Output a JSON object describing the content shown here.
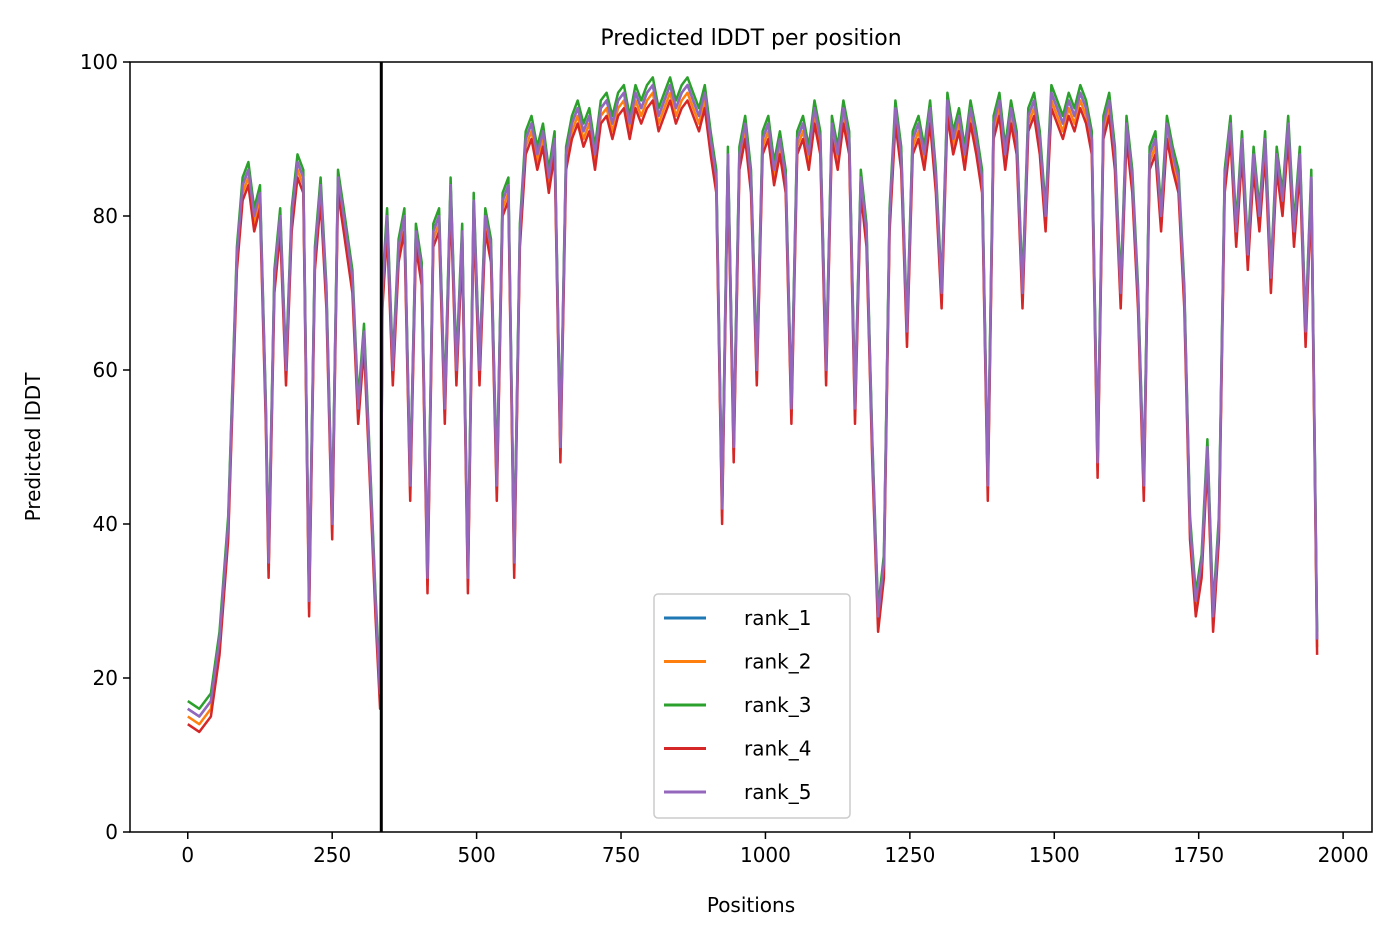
{
  "chart_data": {
    "type": "line",
    "title": "Predicted lDDT per position",
    "xlabel": "Positions",
    "ylabel": "Predicted lDDT",
    "xlim": [
      -100,
      2050
    ],
    "ylim": [
      0,
      100
    ],
    "xticks": [
      0,
      250,
      500,
      750,
      1000,
      1250,
      1500,
      1750,
      2000
    ],
    "yticks": [
      0,
      20,
      40,
      60,
      80,
      100
    ],
    "grid": false,
    "legend_position": "bottom-center",
    "vline": {
      "x": 335,
      "color": "#000000"
    },
    "series": [
      {
        "name": "rank_1",
        "color": "#1f77b4",
        "offset": 0
      },
      {
        "name": "rank_2",
        "color": "#ff7f0e",
        "offset": -1
      },
      {
        "name": "rank_3",
        "color": "#2ca02c",
        "offset": 1
      },
      {
        "name": "rank_4",
        "color": "#d62728",
        "offset": -2
      },
      {
        "name": "rank_5",
        "color": "#9467bd",
        "offset": 0
      }
    ],
    "profile": [
      [
        0,
        16
      ],
      [
        20,
        15
      ],
      [
        40,
        17
      ],
      [
        55,
        25
      ],
      [
        70,
        40
      ],
      [
        85,
        75
      ],
      [
        95,
        84
      ],
      [
        105,
        86
      ],
      [
        115,
        80
      ],
      [
        125,
        83
      ],
      [
        135,
        55
      ],
      [
        140,
        35
      ],
      [
        150,
        72
      ],
      [
        160,
        80
      ],
      [
        170,
        60
      ],
      [
        180,
        80
      ],
      [
        190,
        87
      ],
      [
        200,
        85
      ],
      [
        210,
        30
      ],
      [
        220,
        75
      ],
      [
        230,
        84
      ],
      [
        240,
        70
      ],
      [
        250,
        40
      ],
      [
        260,
        85
      ],
      [
        270,
        80
      ],
      [
        285,
        72
      ],
      [
        295,
        55
      ],
      [
        305,
        65
      ],
      [
        315,
        48
      ],
      [
        325,
        30
      ],
      [
        333,
        18
      ],
      [
        337,
        70
      ],
      [
        345,
        80
      ],
      [
        355,
        60
      ],
      [
        365,
        76
      ],
      [
        375,
        80
      ],
      [
        385,
        45
      ],
      [
        395,
        78
      ],
      [
        405,
        73
      ],
      [
        415,
        33
      ],
      [
        425,
        78
      ],
      [
        435,
        80
      ],
      [
        445,
        55
      ],
      [
        455,
        84
      ],
      [
        465,
        60
      ],
      [
        475,
        78
      ],
      [
        485,
        33
      ],
      [
        495,
        82
      ],
      [
        505,
        60
      ],
      [
        515,
        80
      ],
      [
        525,
        76
      ],
      [
        535,
        45
      ],
      [
        545,
        82
      ],
      [
        555,
        84
      ],
      [
        565,
        35
      ],
      [
        575,
        78
      ],
      [
        585,
        90
      ],
      [
        595,
        92
      ],
      [
        605,
        88
      ],
      [
        615,
        91
      ],
      [
        625,
        85
      ],
      [
        635,
        90
      ],
      [
        645,
        50
      ],
      [
        655,
        88
      ],
      [
        665,
        92
      ],
      [
        675,
        94
      ],
      [
        685,
        91
      ],
      [
        695,
        93
      ],
      [
        705,
        88
      ],
      [
        715,
        94
      ],
      [
        725,
        95
      ],
      [
        735,
        92
      ],
      [
        745,
        95
      ],
      [
        755,
        96
      ],
      [
        765,
        92
      ],
      [
        775,
        96
      ],
      [
        785,
        94
      ],
      [
        795,
        96
      ],
      [
        805,
        97
      ],
      [
        815,
        93
      ],
      [
        825,
        95
      ],
      [
        835,
        97
      ],
      [
        845,
        94
      ],
      [
        855,
        96
      ],
      [
        865,
        97
      ],
      [
        875,
        95
      ],
      [
        885,
        93
      ],
      [
        895,
        96
      ],
      [
        905,
        90
      ],
      [
        915,
        85
      ],
      [
        925,
        42
      ],
      [
        935,
        88
      ],
      [
        945,
        50
      ],
      [
        955,
        88
      ],
      [
        965,
        92
      ],
      [
        975,
        85
      ],
      [
        985,
        60
      ],
      [
        995,
        90
      ],
      [
        1005,
        92
      ],
      [
        1015,
        86
      ],
      [
        1025,
        90
      ],
      [
        1035,
        85
      ],
      [
        1045,
        55
      ],
      [
        1055,
        90
      ],
      [
        1065,
        92
      ],
      [
        1075,
        88
      ],
      [
        1085,
        94
      ],
      [
        1095,
        90
      ],
      [
        1105,
        60
      ],
      [
        1115,
        92
      ],
      [
        1125,
        88
      ],
      [
        1135,
        94
      ],
      [
        1145,
        90
      ],
      [
        1155,
        55
      ],
      [
        1165,
        85
      ],
      [
        1175,
        78
      ],
      [
        1185,
        50
      ],
      [
        1195,
        28
      ],
      [
        1205,
        35
      ],
      [
        1215,
        80
      ],
      [
        1225,
        94
      ],
      [
        1235,
        88
      ],
      [
        1245,
        65
      ],
      [
        1255,
        90
      ],
      [
        1265,
        92
      ],
      [
        1275,
        88
      ],
      [
        1285,
        94
      ],
      [
        1295,
        85
      ],
      [
        1305,
        70
      ],
      [
        1315,
        95
      ],
      [
        1325,
        90
      ],
      [
        1335,
        93
      ],
      [
        1345,
        88
      ],
      [
        1355,
        94
      ],
      [
        1365,
        90
      ],
      [
        1375,
        85
      ],
      [
        1385,
        45
      ],
      [
        1395,
        92
      ],
      [
        1405,
        95
      ],
      [
        1415,
        88
      ],
      [
        1425,
        94
      ],
      [
        1435,
        90
      ],
      [
        1445,
        70
      ],
      [
        1455,
        93
      ],
      [
        1465,
        95
      ],
      [
        1475,
        90
      ],
      [
        1485,
        80
      ],
      [
        1495,
        96
      ],
      [
        1505,
        94
      ],
      [
        1515,
        92
      ],
      [
        1525,
        95
      ],
      [
        1535,
        93
      ],
      [
        1545,
        96
      ],
      [
        1555,
        94
      ],
      [
        1565,
        90
      ],
      [
        1575,
        48
      ],
      [
        1585,
        92
      ],
      [
        1595,
        95
      ],
      [
        1605,
        88
      ],
      [
        1615,
        70
      ],
      [
        1625,
        92
      ],
      [
        1635,
        85
      ],
      [
        1645,
        70
      ],
      [
        1655,
        45
      ],
      [
        1665,
        88
      ],
      [
        1675,
        90
      ],
      [
        1685,
        80
      ],
      [
        1695,
        92
      ],
      [
        1705,
        88
      ],
      [
        1715,
        85
      ],
      [
        1725,
        70
      ],
      [
        1735,
        40
      ],
      [
        1745,
        30
      ],
      [
        1755,
        35
      ],
      [
        1765,
        50
      ],
      [
        1775,
        28
      ],
      [
        1785,
        40
      ],
      [
        1795,
        85
      ],
      [
        1805,
        92
      ],
      [
        1815,
        78
      ],
      [
        1825,
        90
      ],
      [
        1835,
        75
      ],
      [
        1845,
        88
      ],
      [
        1855,
        80
      ],
      [
        1865,
        90
      ],
      [
        1875,
        72
      ],
      [
        1885,
        88
      ],
      [
        1895,
        82
      ],
      [
        1905,
        92
      ],
      [
        1915,
        78
      ],
      [
        1925,
        88
      ],
      [
        1935,
        65
      ],
      [
        1945,
        85
      ],
      [
        1955,
        25
      ]
    ]
  }
}
